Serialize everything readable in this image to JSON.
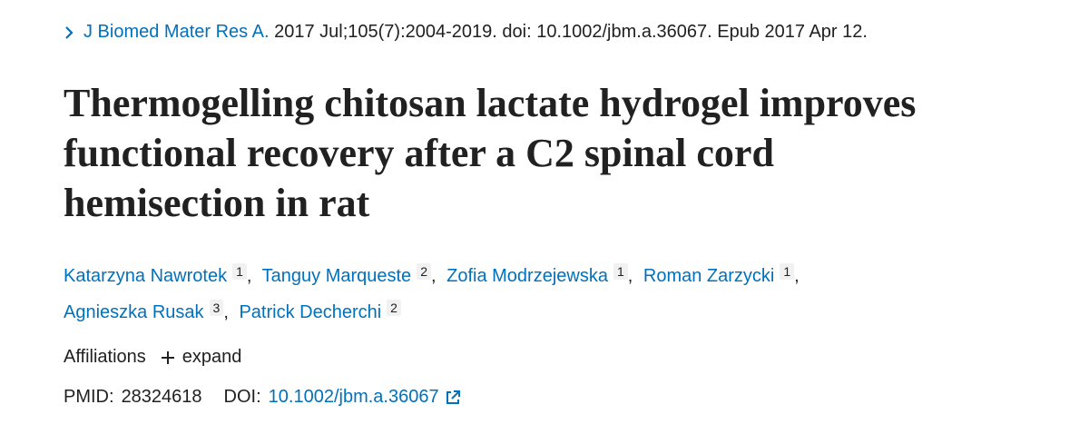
{
  "citation": {
    "journal": "J Biomed Mater Res A.",
    "details": " 2017 Jul;105(7):2004-2019. doi: 10.1002/jbm.a.36067. Epub 2017 Apr 12."
  },
  "title_lines": [
    "Thermogelling chitosan lactate hydrogel improves",
    "functional recovery after a C2 spinal cord",
    "hemisection in rat"
  ],
  "author_separator": ",",
  "authors": [
    {
      "name": "Katarzyna Nawrotek",
      "affiliation": "1"
    },
    {
      "name": "Tanguy Marqueste",
      "affiliation": "2"
    },
    {
      "name": "Zofia Modrzejewska",
      "affiliation": "1"
    },
    {
      "name": "Roman Zarzycki",
      "affiliation": "1"
    },
    {
      "name": "Agnieszka Rusak",
      "affiliation": "3"
    },
    {
      "name": "Patrick Decherchi",
      "affiliation": "2"
    }
  ],
  "affiliations": {
    "label": "Affiliations",
    "action": "expand"
  },
  "ids": {
    "pmid_label": "PMID:",
    "pmid": "28324618",
    "doi_label": "DOI:",
    "doi": "10.1002/jbm.a.36067"
  }
}
